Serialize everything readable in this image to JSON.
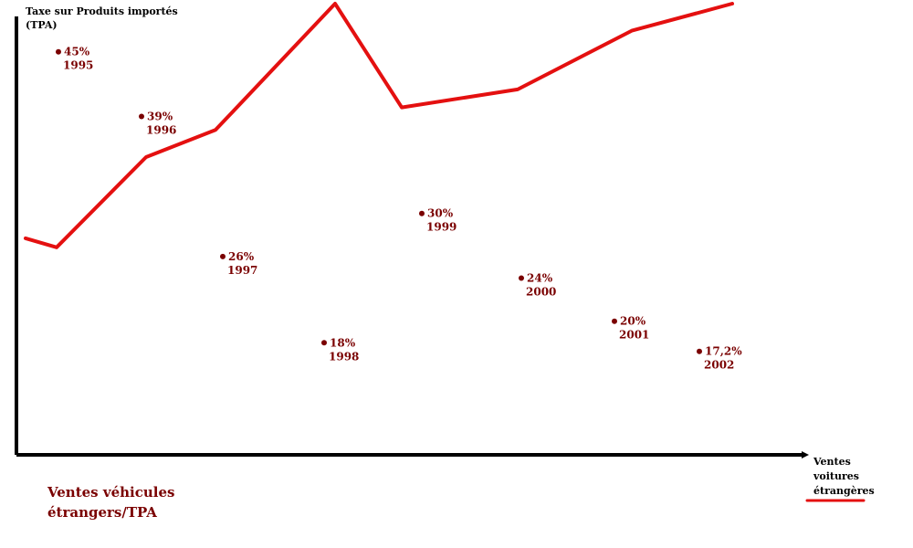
{
  "chart_data": {
    "type": "line",
    "title": "Ventes véhicules étrangers/TPA",
    "ylabel": "Taxe sur Produits importés (TPA)",
    "xlabel": "Ventes voitures étrangères",
    "grid": false,
    "legend": {
      "label": "étrangères",
      "color": "#e41010",
      "position": "bottom-right"
    },
    "colors": {
      "line": "#e41010",
      "points": "#7a0000",
      "axes": "#000000"
    },
    "tpa_points": [
      {
        "year": "1995",
        "value": "45%",
        "num": 45
      },
      {
        "year": "1996",
        "value": "39%",
        "num": 39
      },
      {
        "year": "1997",
        "value": "26%",
        "num": 26
      },
      {
        "year": "1998",
        "value": "18%",
        "num": 18
      },
      {
        "year": "1999",
        "value": "30%",
        "num": 30
      },
      {
        "year": "2000",
        "value": "24%",
        "num": 24
      },
      {
        "year": "2001",
        "value": "20%",
        "num": 20
      },
      {
        "year": "2002",
        "value": "17,2%",
        "num": 17.2
      }
    ],
    "sales_line": {
      "note": "unlabelled relative levels (0–100) read from the drawing",
      "values": [
        48,
        46,
        66,
        72,
        100,
        77,
        81,
        94,
        100
      ]
    }
  }
}
